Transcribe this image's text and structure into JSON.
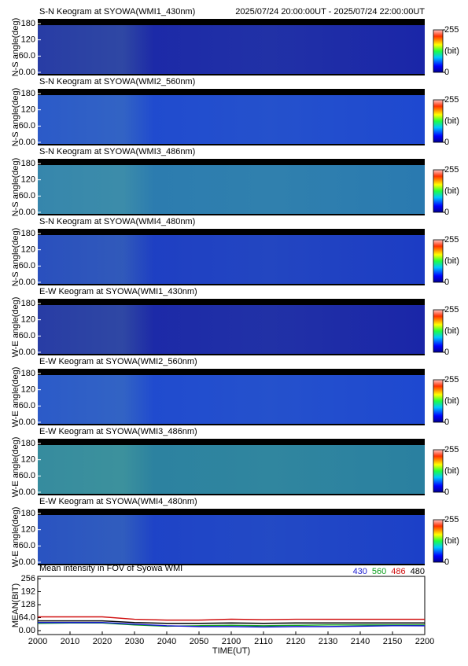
{
  "chart_data": [
    {
      "type": "heatmap",
      "title": "S-N Keogram at SYOWA(WMI1_430nm)",
      "subtitle": "2025/07/24 20:00:00UT - 2025/07/24 22:00:00UT",
      "ylabel": "N-S angle(deg)",
      "ylim": [
        0,
        180
      ],
      "yticks": [
        {
          "value": 0,
          "label": "0.00"
        },
        {
          "value": 60,
          "label": "60.0"
        },
        120,
        180
      ],
      "color": "#1a26a8",
      "cbar_ticks": [
        0,
        255
      ],
      "cbar_label": "(bit)"
    },
    {
      "type": "heatmap",
      "title": "S-N Keogram at SYOWA(WMI2_560nm)",
      "ylabel": "N-S angle(deg)",
      "ylim": [
        0,
        180
      ],
      "yticks": [
        {
          "value": 0,
          "label": "0.00"
        },
        {
          "value": 60,
          "label": "60.0"
        },
        120,
        180
      ],
      "color": "#1e48d0",
      "cbar_ticks": [
        0,
        255
      ],
      "cbar_label": "(bit)"
    },
    {
      "type": "heatmap",
      "title": "S-N Keogram at SYOWA(WMI3_486nm)",
      "ylabel": "N-S angle(deg)",
      "ylim": [
        0,
        180
      ],
      "yticks": [
        {
          "value": 0,
          "label": "0.00"
        },
        {
          "value": 60,
          "label": "60.0"
        },
        120,
        180
      ],
      "color": "#2a7ab0",
      "cbar_ticks": [
        0,
        255
      ],
      "cbar_label": "(bit)"
    },
    {
      "type": "heatmap",
      "title": "S-N Keogram at SYOWA(WMI4_480nm)",
      "ylabel": "N-S angle(deg)",
      "ylim": [
        0,
        180
      ],
      "yticks": [
        {
          "value": 0,
          "label": "0.00"
        },
        {
          "value": 60,
          "label": "60.0"
        },
        120,
        180
      ],
      "color": "#1c3cc4",
      "cbar_ticks": [
        0,
        255
      ],
      "cbar_label": "(bit)"
    },
    {
      "type": "heatmap",
      "title": "E-W Keogram at SYOWA(WMI1_430nm)",
      "ylabel": "W-E angle(deg)",
      "ylim": [
        0,
        180
      ],
      "yticks": [
        {
          "value": 0,
          "label": "0.00"
        },
        {
          "value": 60,
          "label": "60.0"
        },
        120,
        180
      ],
      "color": "#1a26a8",
      "cbar_ticks": [
        0,
        255
      ],
      "cbar_label": "(bit)"
    },
    {
      "type": "heatmap",
      "title": "E-W Keogram at SYOWA(WMI2_560nm)",
      "ylabel": "W-E angle(deg)",
      "ylim": [
        0,
        180
      ],
      "yticks": [
        {
          "value": 0,
          "label": "0.00"
        },
        {
          "value": 60,
          "label": "60.0"
        },
        120,
        180
      ],
      "color": "#1e48d0",
      "cbar_ticks": [
        0,
        255
      ],
      "cbar_label": "(bit)"
    },
    {
      "type": "heatmap",
      "title": "E-W Keogram at SYOWA(WMI3_486nm)",
      "ylabel": "W-E angle(deg)",
      "ylim": [
        0,
        180
      ],
      "yticks": [
        {
          "value": 0,
          "label": "0.00"
        },
        {
          "value": 60,
          "label": "60.0"
        },
        120,
        180
      ],
      "color": "#2a80a0",
      "cbar_ticks": [
        0,
        255
      ],
      "cbar_label": "(bit)"
    },
    {
      "type": "heatmap",
      "title": "E-W Keogram at SYOWA(WMI4_480nm)",
      "ylabel": "W-E angle(deg)",
      "ylim": [
        0,
        180
      ],
      "yticks": [
        {
          "value": 0,
          "label": "0.00"
        },
        {
          "value": 60,
          "label": "60.0"
        },
        120,
        180
      ],
      "color": "#1c40c8",
      "cbar_ticks": [
        0,
        255
      ],
      "cbar_label": "(bit)"
    },
    {
      "type": "line",
      "title": "Mean intensity in FOV of Syowa WMI",
      "ylabel": "MEAN(BIT)",
      "xlabel": "TIME(UT)",
      "categories": [
        "2000",
        "2010",
        "2020",
        "2030",
        "2040",
        "2050",
        "2100",
        "2110",
        "2120",
        "2130",
        "2140",
        "2150",
        "2200"
      ],
      "ylim": [
        0,
        256
      ],
      "yticks": [
        {
          "value": 0,
          "label": "0.00"
        },
        {
          "value": 64,
          "label": "64.0"
        },
        128,
        192,
        256
      ],
      "series": [
        {
          "name": "430",
          "color": "#1a1ad0",
          "values": [
            40,
            40,
            40,
            32,
            24,
            20,
            20,
            18,
            20,
            20,
            22,
            24,
            24
          ]
        },
        {
          "name": "560",
          "color": "#10a020",
          "values": [
            36,
            38,
            38,
            28,
            22,
            24,
            26,
            24,
            26,
            28,
            28,
            28,
            28
          ]
        },
        {
          "name": "486",
          "color": "#d01010",
          "values": [
            68,
            68,
            68,
            56,
            52,
            52,
            56,
            54,
            56,
            56,
            56,
            56,
            56
          ]
        },
        {
          "name": "480",
          "color": "#000000",
          "values": [
            48,
            48,
            48,
            40,
            36,
            36,
            38,
            36,
            38,
            38,
            38,
            38,
            38
          ]
        }
      ]
    }
  ]
}
